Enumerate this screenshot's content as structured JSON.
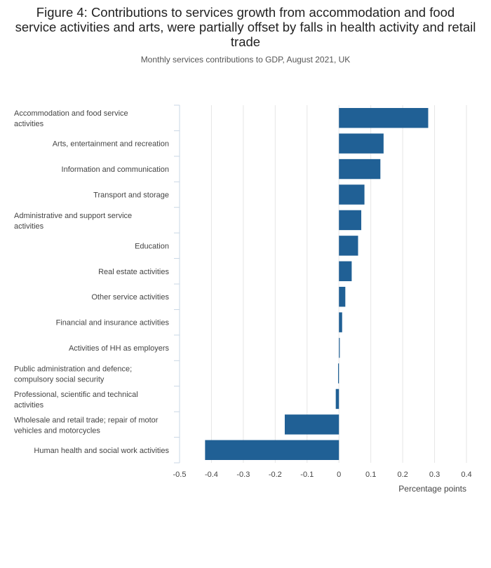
{
  "header": {
    "title": "Figure 4: Contributions to services growth from accommodation and food service activities and arts, were partially offset by falls in health activity and retail trade",
    "subtitle": "Monthly services contributions to GDP, August 2021, UK"
  },
  "chart_data": {
    "type": "bar",
    "orientation": "horizontal",
    "categories": [
      "Accommodation and food service activities",
      "Arts, entertainment and recreation",
      "Information and communication",
      "Transport and storage",
      "Administrative and support service activities",
      "Education",
      "Real estate activities",
      "Other service activities",
      "Financial and insurance activities",
      "Activities of HH as employers",
      "Public administration and defence; compulsory social security",
      "Professional, scientific and technical activities",
      "Wholesale and retail trade; repair of motor vehicles and motorcycles",
      "Human health and social work activities"
    ],
    "category_lines": [
      [
        "Accommodation and food service",
        "activities"
      ],
      [
        "Arts, entertainment and recreation"
      ],
      [
        "Information and communication"
      ],
      [
        "Transport and storage"
      ],
      [
        "Administrative and support service",
        "activities"
      ],
      [
        "Education"
      ],
      [
        "Real estate activities"
      ],
      [
        "Other service activities"
      ],
      [
        "Financial and insurance activities"
      ],
      [
        "Activities of HH as employers"
      ],
      [
        "Public administration and defence;",
        "compulsory social security"
      ],
      [
        "Professional, scientific and technical",
        "activities"
      ],
      [
        "Wholesale and retail trade; repair of motor",
        "vehicles and motorcycles"
      ],
      [
        "Human health and social work activities"
      ]
    ],
    "values": [
      0.28,
      0.14,
      0.13,
      0.08,
      0.07,
      0.06,
      0.04,
      0.02,
      0.01,
      0.002,
      -0.002,
      -0.01,
      -0.17,
      -0.42
    ],
    "xlabel": "Percentage points",
    "xlim": [
      -0.5,
      0.4
    ],
    "xticks": [
      -0.5,
      -0.4,
      -0.3,
      -0.2,
      -0.1,
      0,
      0.1,
      0.2,
      0.3,
      0.4
    ],
    "xtick_labels": [
      "-0.5",
      "-0.4",
      "-0.3",
      "-0.2",
      "-0.1",
      "0",
      "0.1",
      "0.2",
      "0.3",
      "0.4"
    ],
    "grid": true,
    "bar_color": "#206095",
    "grid_color": "#e6e6e6",
    "axis_color": "#c9d7e5"
  }
}
